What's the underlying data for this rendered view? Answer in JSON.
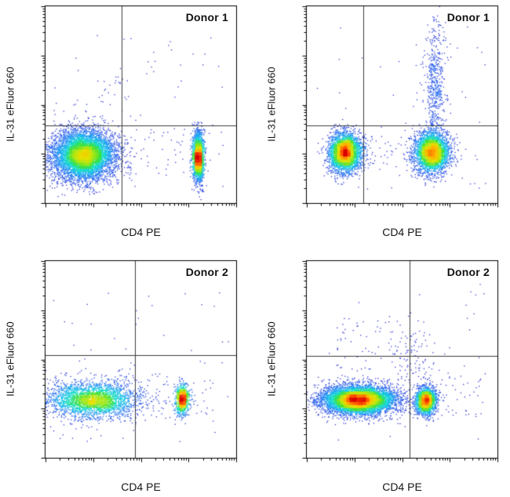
{
  "figure": {
    "background": "#ffffff",
    "border_color": "#000000",
    "gate_line_color": "#3c3c3c",
    "colormap_name": "pseudocolor-jet-density",
    "colormap": [
      [
        0.0,
        "#3434d2"
      ],
      [
        0.15,
        "#2a6cf2"
      ],
      [
        0.3,
        "#18b8f0"
      ],
      [
        0.42,
        "#19e0c8"
      ],
      [
        0.52,
        "#3ae03a"
      ],
      [
        0.62,
        "#a0e818"
      ],
      [
        0.72,
        "#e8e000"
      ],
      [
        0.82,
        "#ffb000"
      ],
      [
        0.91,
        "#ff5000"
      ],
      [
        1.0,
        "#d80000"
      ]
    ]
  },
  "chart_data": [
    {
      "type": "scatter",
      "subtype": "flow-cytometry-density",
      "title": "Donor 1",
      "xlabel": "CD4 PE",
      "ylabel": "IL-31 eFluor 660",
      "axes": {
        "x_scale": "log",
        "y_scale": "log",
        "tick_labels_visible": false,
        "decades": 4
      },
      "quadrant_gate": {
        "x_frac": 0.4,
        "y_frac": 0.395
      },
      "seed": 101,
      "populations": [
        {
          "name": "cd4-negative-il31-negative-main",
          "type": "gauss",
          "cx": 0.205,
          "cy": 0.245,
          "sx": 0.083,
          "sy": 0.063,
          "n": 6200
        },
        {
          "name": "cd4-positive-il31-negative",
          "type": "gauss",
          "cx": 0.8,
          "cy": 0.235,
          "sx": 0.014,
          "sy": 0.062,
          "n": 2100
        },
        {
          "name": "upper-left-sparse-cluster",
          "type": "gauss",
          "cx": 0.33,
          "cy": 0.55,
          "sx": 0.06,
          "sy": 0.07,
          "n": 25
        },
        {
          "name": "scatter-band",
          "type": "uniform",
          "x0": 0.08,
          "x1": 0.93,
          "y0": 0.14,
          "y1": 0.4,
          "n": 90
        },
        {
          "name": "sparse-noise",
          "type": "uniform",
          "x0": 0.04,
          "x1": 0.96,
          "y0": 0.06,
          "y1": 0.85,
          "n": 50
        }
      ]
    },
    {
      "type": "scatter",
      "subtype": "flow-cytometry-density",
      "title": "Donor 1",
      "xlabel": "CD4 PE",
      "ylabel": "IL-31 eFluor 660",
      "axes": {
        "x_scale": "log",
        "y_scale": "log",
        "tick_labels_visible": false,
        "decades": 4
      },
      "quadrant_gate": {
        "x_frac": 0.298,
        "y_frac": 0.395
      },
      "seed": 202,
      "populations": [
        {
          "name": "cd4-negative-il31-negative",
          "type": "gauss",
          "cx": 0.205,
          "cy": 0.26,
          "sx": 0.042,
          "sy": 0.05,
          "n": 3000
        },
        {
          "name": "cd4-positive-il31-negative",
          "type": "gauss",
          "cx": 0.655,
          "cy": 0.26,
          "sx": 0.046,
          "sy": 0.052,
          "n": 3000
        },
        {
          "name": "cd4-positive-il31-positive-tail",
          "type": "gauss",
          "cx": 0.672,
          "cy": 0.58,
          "sx": 0.023,
          "sy": 0.16,
          "n": 420
        },
        {
          "name": "tail-halo",
          "type": "gauss",
          "cx": 0.675,
          "cy": 0.66,
          "sx": 0.045,
          "sy": 0.13,
          "n": 120
        },
        {
          "name": "scatter-band",
          "type": "uniform",
          "x0": 0.1,
          "x1": 0.78,
          "y0": 0.18,
          "y1": 0.34,
          "n": 130
        },
        {
          "name": "sparse-noise",
          "type": "uniform",
          "x0": 0.04,
          "x1": 0.96,
          "y0": 0.06,
          "y1": 0.9,
          "n": 45
        }
      ]
    },
    {
      "type": "scatter",
      "subtype": "flow-cytometry-density",
      "title": "Donor 2",
      "xlabel": "CD4 PE",
      "ylabel": "IL-31 eFluor 660",
      "axes": {
        "x_scale": "log",
        "y_scale": "log",
        "tick_labels_visible": false,
        "decades": 4
      },
      "quadrant_gate": {
        "x_frac": 0.47,
        "y_frac": 0.52
      },
      "seed": 303,
      "populations": [
        {
          "name": "cd4-negative-diffuse",
          "type": "gauss",
          "cx": 0.245,
          "cy": 0.295,
          "sx": 0.115,
          "sy": 0.042,
          "n": 2400
        },
        {
          "name": "cd4-negative-halo",
          "type": "gauss",
          "cx": 0.26,
          "cy": 0.3,
          "sx": 0.17,
          "sy": 0.07,
          "n": 350
        },
        {
          "name": "cd4-positive-small",
          "type": "gauss",
          "cx": 0.715,
          "cy": 0.3,
          "sx": 0.018,
          "sy": 0.038,
          "n": 750
        },
        {
          "name": "scatter-band",
          "type": "uniform",
          "x0": 0.05,
          "x1": 0.88,
          "y0": 0.2,
          "y1": 0.4,
          "n": 160
        },
        {
          "name": "sparse-noise",
          "type": "uniform",
          "x0": 0.04,
          "x1": 0.96,
          "y0": 0.08,
          "y1": 0.85,
          "n": 55
        }
      ]
    },
    {
      "type": "scatter",
      "subtype": "flow-cytometry-density",
      "title": "Donor 2",
      "xlabel": "CD4 PE",
      "ylabel": "IL-31 eFluor 660",
      "axes": {
        "x_scale": "log",
        "y_scale": "log",
        "tick_labels_visible": false,
        "decades": 4
      },
      "quadrant_gate": {
        "x_frac": 0.537,
        "y_frac": 0.518
      },
      "seed": 404,
      "populations": [
        {
          "name": "cd4-negative-dense-wide",
          "type": "gauss",
          "cx": 0.275,
          "cy": 0.295,
          "sx": 0.095,
          "sy": 0.036,
          "n": 6500
        },
        {
          "name": "cd4-positive-dense",
          "type": "gauss",
          "cx": 0.625,
          "cy": 0.29,
          "sx": 0.026,
          "sy": 0.034,
          "n": 1900
        },
        {
          "name": "upper-scatter",
          "type": "uniform",
          "x0": 0.16,
          "x1": 0.62,
          "y0": 0.44,
          "y1": 0.72,
          "n": 80
        },
        {
          "name": "mid-tail",
          "type": "gauss",
          "cx": 0.56,
          "cy": 0.46,
          "sx": 0.06,
          "sy": 0.1,
          "n": 90
        },
        {
          "name": "scatter-band",
          "type": "uniform",
          "x0": 0.06,
          "x1": 0.93,
          "y0": 0.2,
          "y1": 0.42,
          "n": 130
        },
        {
          "name": "sparse-noise",
          "type": "uniform",
          "x0": 0.04,
          "x1": 0.96,
          "y0": 0.08,
          "y1": 0.88,
          "n": 45
        }
      ]
    }
  ]
}
